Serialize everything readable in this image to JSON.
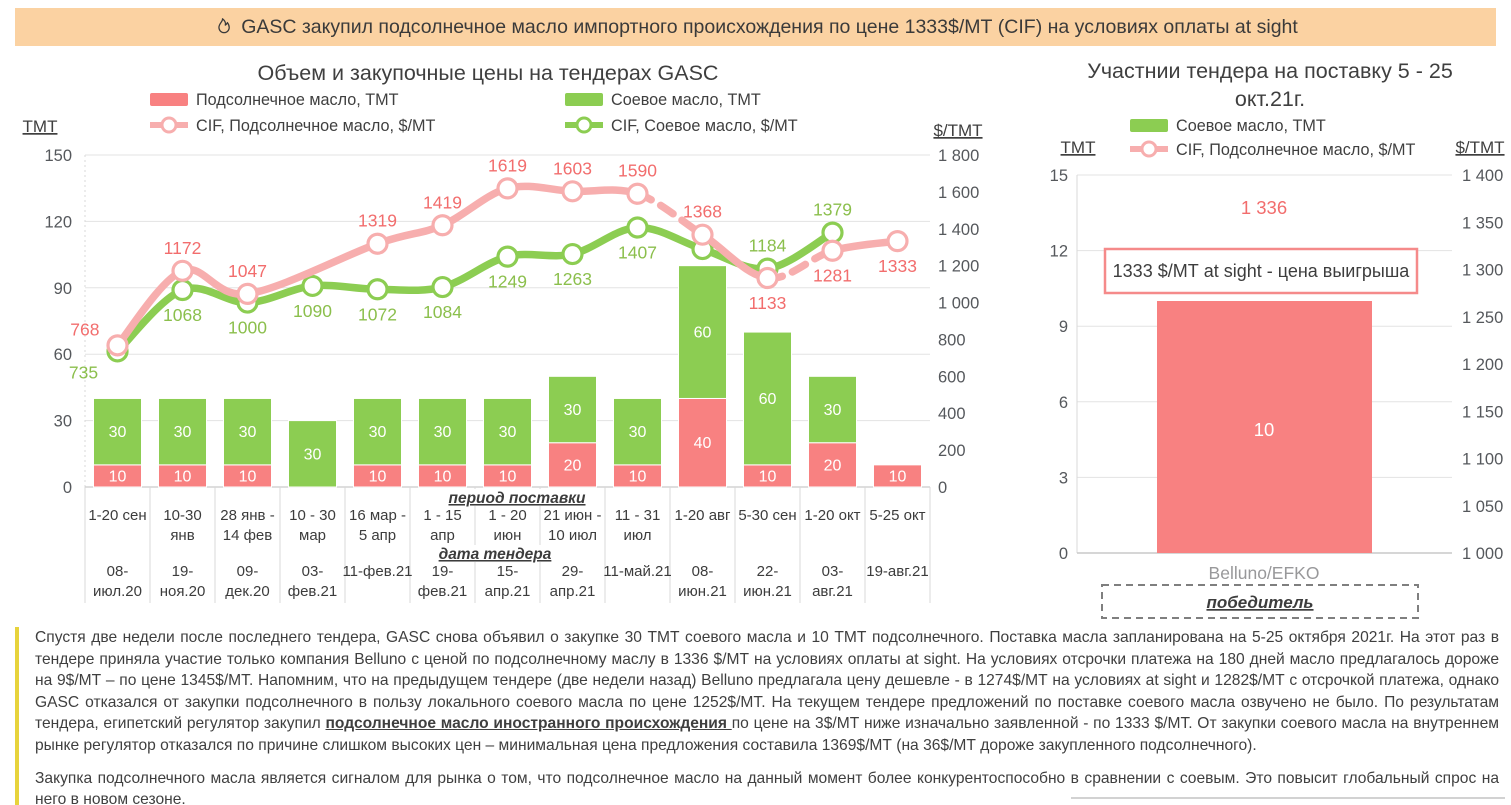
{
  "banner": {
    "icon": "flame-icon",
    "text": "GASC закупил подсолнечное масло импортного происхождения по цене 1333$/МТ (CIF) на условиях оплаты at sight",
    "background_color": "#fbd2a2"
  },
  "chart_data": [
    {
      "id": "gasc-tenders",
      "type": "bar+line",
      "title": "Объем и закупочные цены на тендерах GASC",
      "left_axis": {
        "label": "ТМТ",
        "min": 0,
        "max": 150,
        "ticks": [
          0,
          30,
          60,
          90,
          120,
          150
        ]
      },
      "right_axis": {
        "label": "$/ТМТ",
        "min": 0,
        "max": 1800,
        "ticks": [
          0,
          200,
          400,
          600,
          800,
          1000,
          1200,
          1400,
          1600,
          1800
        ]
      },
      "x_row_headers": {
        "period": "период поставки",
        "date": "дата тендера"
      },
      "categories": [
        {
          "period": [
            "1-20 сен"
          ],
          "date": [
            "08-",
            "июл.20"
          ]
        },
        {
          "period": [
            "10-30",
            "янв"
          ],
          "date": [
            "19-",
            "ноя.20"
          ]
        },
        {
          "period": [
            "28 янв -",
            "14 фев"
          ],
          "date": [
            "09-",
            "дек.20"
          ]
        },
        {
          "period": [
            "10 - 30",
            "мар"
          ],
          "date": [
            "03-",
            "фев.21"
          ]
        },
        {
          "period": [
            "16 мар -",
            "5 апр"
          ],
          "date": [
            "11-фев.21"
          ]
        },
        {
          "period": [
            "1 - 15",
            "апр"
          ],
          "date": [
            "19-",
            "фев.21"
          ]
        },
        {
          "period": [
            "1 - 20",
            "июн"
          ],
          "date": [
            "15-",
            "апр.21"
          ]
        },
        {
          "period": [
            "21 июн -",
            "10 июл"
          ],
          "date": [
            "29-",
            "апр.21"
          ]
        },
        {
          "period": [
            "11 - 31",
            "июл"
          ],
          "date": [
            "11-май.21"
          ]
        },
        {
          "period": [
            "1-20 авг"
          ],
          "date": [
            "08-",
            "июн.21"
          ]
        },
        {
          "period": [
            "5-30 сен"
          ],
          "date": [
            "22-",
            "июн.21"
          ]
        },
        {
          "period": [
            "1-20 окт"
          ],
          "date": [
            "03-",
            "авг.21"
          ]
        },
        {
          "period": [
            "5-25 окт"
          ],
          "date": [
            "19-авг.21"
          ]
        }
      ],
      "bar_series": [
        {
          "name": "Подсолнечное масло, ТМТ",
          "color": "#f88181",
          "values": [
            10,
            10,
            10,
            null,
            10,
            10,
            10,
            20,
            10,
            40,
            10,
            20,
            10
          ]
        },
        {
          "name": "Соевое масло, ТМТ",
          "color": "#8ccd52",
          "values": [
            30,
            30,
            30,
            30,
            30,
            30,
            30,
            30,
            30,
            60,
            60,
            30,
            null
          ]
        }
      ],
      "line_series": [
        {
          "name": "CIF, Подсолнечное масло, $/МТ",
          "color": "#f7aeae",
          "label_color": "#f26d6d",
          "values": [
            768,
            1172,
            1047,
            null,
            1319,
            1419,
            1619,
            1603,
            1590,
            1368,
            1133,
            1281,
            1333
          ],
          "label_pos": [
            "left",
            "above",
            "above",
            null,
            "above",
            "above",
            "above",
            "above",
            "above",
            "above",
            "below",
            "below",
            "below"
          ],
          "dashed_segments": [
            [
              8,
              9
            ],
            [
              10,
              11
            ]
          ]
        },
        {
          "name": "CIF, Соевое масло, $/МТ",
          "color": "#8ccd52",
          "label_color": "#8bbf4c",
          "values": [
            735,
            1068,
            1000,
            1090,
            1072,
            1084,
            1249,
            1263,
            1407,
            1290,
            1184,
            1379,
            null
          ],
          "label_pos": [
            "below-left",
            "below",
            "below",
            "below",
            "below",
            "below",
            "below",
            "below",
            "below",
            "none",
            "above",
            "above",
            null
          ],
          "dashed_segments": []
        }
      ]
    },
    {
      "id": "tender-participants",
      "type": "bar+line",
      "title_lines": [
        "Участнии тендера на поставку 5 - 25",
        "окт.21г."
      ],
      "left_axis": {
        "label": "ТМТ",
        "min": 0,
        "max": 15,
        "ticks": [
          0,
          3,
          6,
          9,
          12,
          15
        ]
      },
      "right_axis": {
        "label": "$/ТМТ",
        "min": 1000,
        "max": 1400,
        "ticks": [
          1000,
          1050,
          1100,
          1150,
          1200,
          1250,
          1300,
          1350,
          1400
        ]
      },
      "legend": [
        {
          "name": "Соевое масло, ТМТ",
          "type": "bar",
          "color": "#8ccd52"
        },
        {
          "name": "CIF, Подсолнечное масло, $/МТ",
          "type": "line",
          "color": "#f7aeae"
        }
      ],
      "category": "Belluno/EFKO",
      "bars": [
        {
          "name": "Подсолнечное масло, ТМТ",
          "color": "#f88181",
          "value": 10
        }
      ],
      "cif_price_label": "1 336",
      "annotation": "1333 $/МТ at sight - цена выигрыша",
      "winner_label": "победитель"
    }
  ],
  "commentary": {
    "accent_color": "#e7d33c",
    "paragraph1_segments": [
      {
        "style": "normal",
        "text": "Спустя две недели после последнего тендера, GASC снова объявил о закупке 30 ТМТ соевого масла и 10 ТМТ подсолнечного. Поставка масла запланирована на 5-25 октября 2021г. На этот раз в тендере приняла участие только компания Belluno с ценой по подсолнечному маслу в 1336 $/МТ на условиях оплаты at sight. На условиях отсрочки платежа на 180 дней масло предлагалось дороже на 9$/МТ – по цене 1345$/МТ. Напомним, что на предыдущем тендере (две недели назад) Belluno предлагала цену дешевле - в 1274$/МТ на условиях at sight и 1282$/МТ с отсрочкой платежа, однако GASC отказался от закупки подсолнечного в пользу локального соевого масла по цене 1252$/МТ. На текущем тендере предложений по поставке соевого масла озвучено не было. По результатам тендера, египетский регулятор закупил "
      },
      {
        "style": "bold-underline",
        "text": "подсолнечное масло иностранного происхождения "
      },
      {
        "style": "normal",
        "text": "по цене на 3$/МТ ниже изначально заявленной - по 1333 $/МТ. От закупки соевого масла на внутреннем рынке регулятор отказался по причине слишком высоких цен – минимальная цена предложения составила 1369$/МТ (на 36$/МТ дороже закупленного подсолнечного)."
      }
    ],
    "paragraph2": "Закупка подсолнечного масла является сигналом для рынка о том, что подсолнечное масло на данный момент более конкурентоспособно в сравнении с соевым. Это повысит глобальный спрос на него в новом сезоне."
  }
}
